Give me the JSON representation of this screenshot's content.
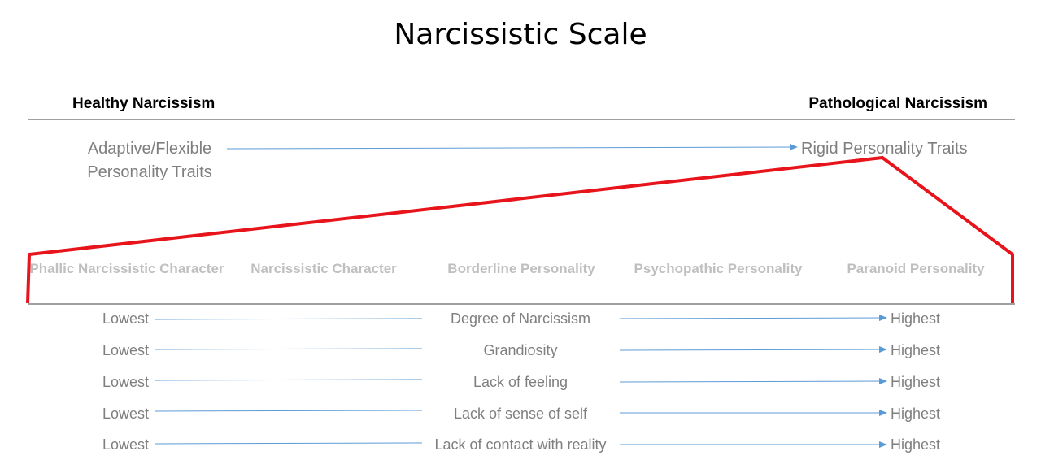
{
  "title": "Narcissistic Scale",
  "scale": {
    "left_heading": "Healthy Narcissism",
    "right_heading": "Pathological Narcissism",
    "left_traits": "Adaptive/Flexible Personality Traits",
    "right_traits": "Rigid Personality Traits"
  },
  "categories": [
    "Phallic Narcissistic Character",
    "Narcissistic Character",
    "Borderline Personality",
    "Psychopathic Personality",
    "Paranoid Personality"
  ],
  "rows": [
    {
      "low": "Lowest",
      "criterion": "Degree of Narcissism",
      "high": "Highest"
    },
    {
      "low": "Lowest",
      "criterion": "Grandiosity",
      "high": "Highest"
    },
    {
      "low": "Lowest",
      "criterion": "Lack of feeling",
      "high": "Highest"
    },
    {
      "low": "Lowest",
      "criterion": "Lack of sense of self",
      "high": "Highest"
    },
    {
      "low": "Lowest",
      "criterion": "Lack of contact with reality",
      "high": "Highest"
    }
  ],
  "colors": {
    "zoom_outline": "#e8141b",
    "arrow": "#5b9bd5",
    "rule": "#808080",
    "grey_text": "#7f7f7f",
    "category_text": "#bfbfbf"
  }
}
